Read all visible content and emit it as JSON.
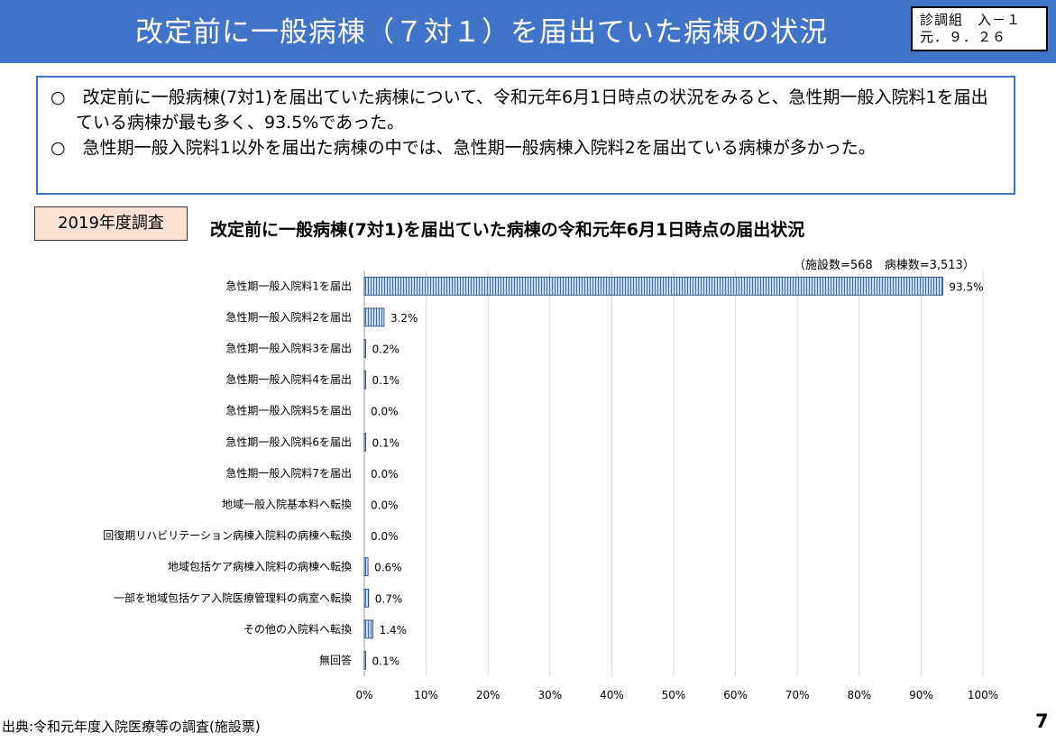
{
  "header": {
    "title": "改定前に一般病棟（７対１）を届出ていた病棟の状況",
    "code_line1": "診調組　入－１",
    "code_line2": "元．９．２６"
  },
  "summary": {
    "point1": "○　改定前に一般病棟(7対1)を届出ていた病棟について、令和元年6月1日時点の状況をみると、急性期一般入院料1を届出ている病棟が最も多く、93.5%であった。",
    "point2": "○　急性期一般入院料1以外を届出た病棟の中では、急性期一般病棟入院料2を届出ている病棟が多かった。"
  },
  "survey_badge": "2019年度調査",
  "footer": {
    "source": "出典:令和元年度入院医療等の調査(施設票)",
    "page_number": "7"
  },
  "chart_data": {
    "type": "bar",
    "orientation": "horizontal",
    "title": "改定前に一般病棟(7対1)を届出ていた病棟の令和元年6月1日時点の届出状況",
    "note": "（施設数=568　病棟数=3,513）",
    "categories": [
      "急性期一般入院料1を届出",
      "急性期一般入院料2を届出",
      "急性期一般入院料3を届出",
      "急性期一般入院料4を届出",
      "急性期一般入院料5を届出",
      "急性期一般入院料6を届出",
      "急性期一般入院料7を届出",
      "地域一般入院基本料へ転換",
      "回復期リハビリテーション病棟入院料の病棟へ転換",
      "地域包括ケア病棟入院料の病棟へ転換",
      "一部を地域包括ケア入院医療管理料の病室へ転換",
      "その他の入院料へ転換",
      "無回答"
    ],
    "values": [
      93.5,
      3.2,
      0.2,
      0.1,
      0.0,
      0.1,
      0.0,
      0.0,
      0.0,
      0.6,
      0.7,
      1.4,
      0.1
    ],
    "value_labels": [
      "93.5%",
      "3.2%",
      "0.2%",
      "0.1%",
      "0.0%",
      "0.1%",
      "0.0%",
      "0.0%",
      "0.0%",
      "0.6%",
      "0.7%",
      "1.4%",
      "0.1%"
    ],
    "xlim": [
      0,
      100
    ],
    "x_ticks": [
      0,
      10,
      20,
      30,
      40,
      50,
      60,
      70,
      80,
      90,
      100
    ],
    "x_tick_labels": [
      "0%",
      "10%",
      "20%",
      "30%",
      "40%",
      "50%",
      "60%",
      "70%",
      "80%",
      "90%",
      "100%"
    ],
    "grid": true,
    "bar_fill": "#c9d9f0",
    "bar_stripe": "#3f6fb0",
    "bar_border": "#1f3a68"
  }
}
